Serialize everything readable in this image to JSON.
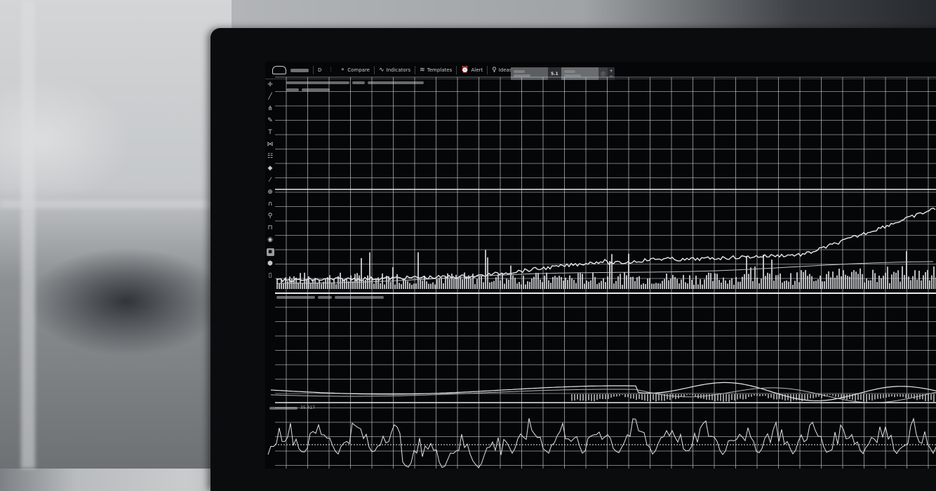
{
  "toolbar": {
    "timeframe_label": "D",
    "compare_label": "Compare",
    "indicators_label": "Indicators",
    "templates_label": "Templates",
    "alert_label": "Alert",
    "ideas_label": "Ideas"
  },
  "order_box": {
    "spread": "5.1",
    "plus": "+",
    "minus": "−"
  },
  "indicator_pane2": {
    "value": "35.417"
  },
  "drawing_tools": [
    "crosshair-icon",
    "trend-line-icon",
    "pitchfork-icon",
    "brush-icon",
    "text-icon",
    "pattern-icon",
    "fib-icon",
    "shape-icon",
    "ruler-icon",
    "zoom-icon",
    "magnet-icon",
    "lock-icon",
    "unlock-icon",
    "eye-icon",
    "trash-icon",
    "layers-icon",
    "hide-icon"
  ],
  "colors": {
    "screen_bg": "#050607",
    "grid": "#cfd2d4",
    "price_line": "#e6e8ea"
  }
}
